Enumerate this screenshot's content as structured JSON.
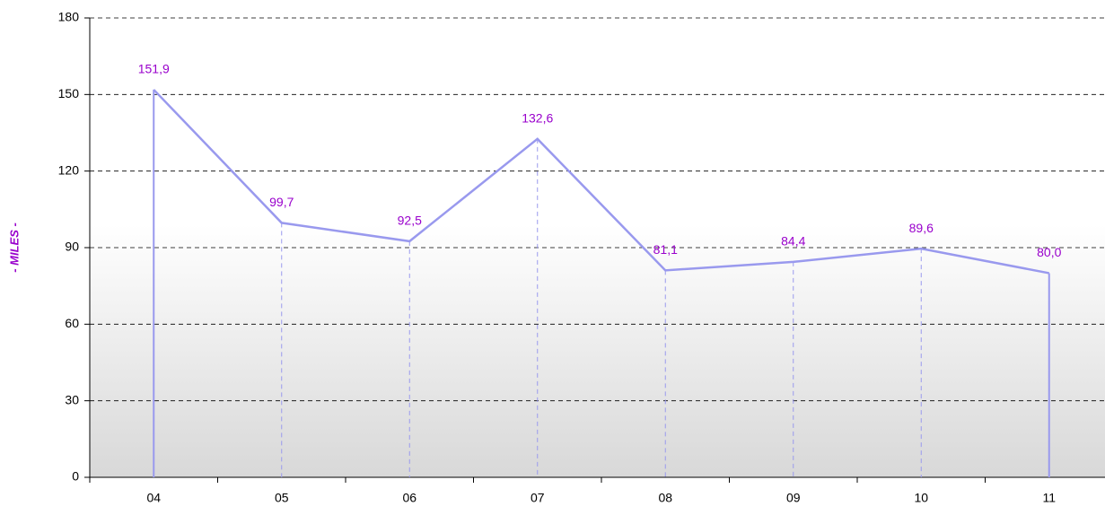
{
  "chart_data": {
    "type": "line",
    "y_label": "- MILES -",
    "categories": [
      "04",
      "05",
      "06",
      "07",
      "08",
      "09",
      "10",
      "11"
    ],
    "values": [
      151.9,
      99.7,
      92.5,
      132.6,
      81.1,
      84.4,
      89.6,
      80.0
    ],
    "value_labels": [
      "151,9",
      "99,7",
      "92,5",
      "132,6",
      "81,1",
      "84,4",
      "89,6",
      "80,0"
    ],
    "color": "#9999ee",
    "label_color": "#9900cc",
    "ylim": [
      0,
      180
    ],
    "yticks": [
      0,
      30,
      60,
      90,
      120,
      150,
      180
    ],
    "grid": true
  }
}
